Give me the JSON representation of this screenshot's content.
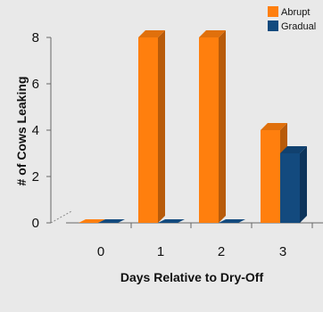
{
  "chart_data": {
    "type": "bar",
    "categories": [
      "0",
      "1",
      "2",
      "3"
    ],
    "series": [
      {
        "name": "Abrupt",
        "values": [
          0,
          8,
          8,
          4
        ],
        "color": "#ff7f0e"
      },
      {
        "name": "Gradual",
        "values": [
          0,
          0,
          0,
          3
        ],
        "color": "#134a7e"
      }
    ],
    "title": "",
    "xlabel": "Days Relative to Dry-Off",
    "ylabel": "# of Cows Leaking",
    "ylim": [
      0,
      8
    ],
    "yticks": [
      0,
      2,
      4,
      6,
      8
    ],
    "grid": false,
    "legend": "top-right",
    "style": "3d-bar"
  }
}
